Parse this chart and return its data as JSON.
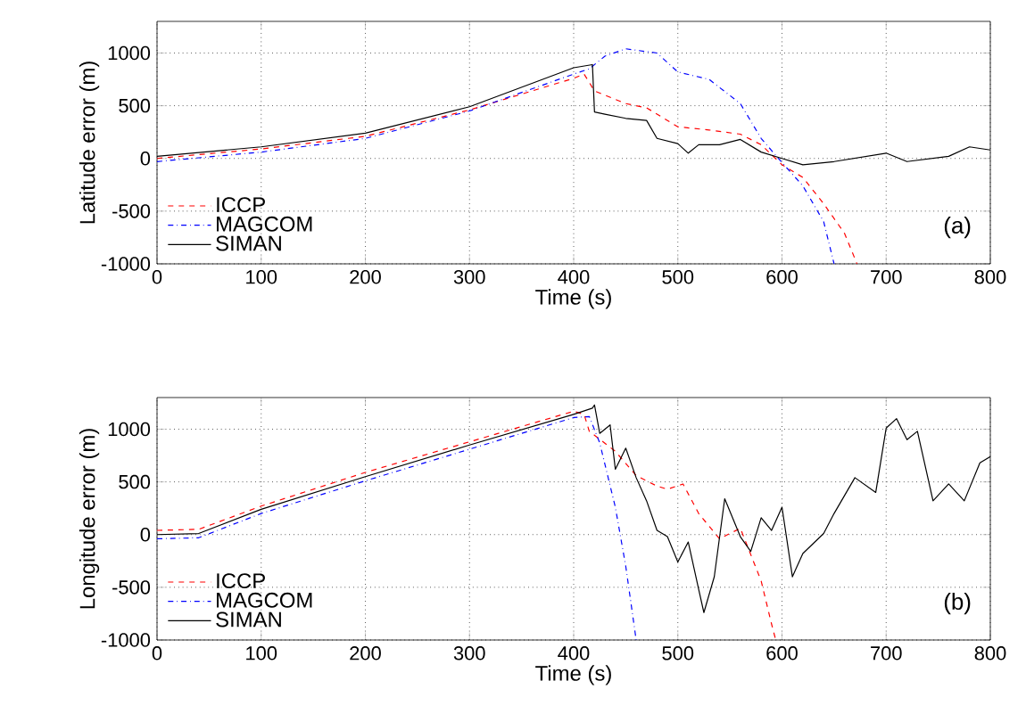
{
  "chart_data": [
    {
      "type": "line",
      "xlabel": "Time (s)",
      "ylabel": "Latitude error (m)",
      "annotations": [
        "(a)"
      ],
      "xlim": [
        0,
        800
      ],
      "ylim": [
        -1000,
        1300
      ],
      "xticks": [
        0,
        100,
        200,
        300,
        400,
        500,
        600,
        700,
        800
      ],
      "yticks": [
        -1000,
        -500,
        0,
        500,
        1000
      ],
      "grid": true,
      "legend": "bottom left",
      "series": [
        {
          "name": "ICCP",
          "color": "#ff0000",
          "line_style": "dashed",
          "x": [
            0,
            100,
            200,
            300,
            400,
            410,
            420,
            450,
            470,
            500,
            530,
            560,
            580,
            600,
            620,
            640,
            660,
            672
          ],
          "values": [
            0,
            90,
            210,
            460,
            760,
            800,
            640,
            520,
            480,
            300,
            270,
            230,
            130,
            -60,
            -180,
            -430,
            -710,
            -1000
          ]
        },
        {
          "name": "MAGCOM",
          "color": "#0000ff",
          "line_style": "dashdot",
          "x": [
            0,
            100,
            200,
            300,
            400,
            415,
            430,
            450,
            480,
            500,
            530,
            560,
            580,
            600,
            620,
            640,
            650
          ],
          "values": [
            -30,
            60,
            190,
            450,
            800,
            850,
            970,
            1040,
            1000,
            820,
            750,
            520,
            190,
            -40,
            -260,
            -600,
            -1000
          ]
        },
        {
          "name": "SIMAN",
          "color": "#000000",
          "line_style": "solid",
          "x": [
            0,
            100,
            200,
            300,
            400,
            418,
            420,
            430,
            450,
            470,
            480,
            500,
            510,
            520,
            540,
            560,
            580,
            600,
            620,
            650,
            700,
            720,
            760,
            780,
            800
          ],
          "values": [
            20,
            110,
            240,
            490,
            860,
            890,
            440,
            420,
            380,
            360,
            190,
            140,
            50,
            130,
            130,
            180,
            60,
            0,
            -60,
            -30,
            50,
            -30,
            20,
            110,
            80
          ]
        }
      ]
    },
    {
      "type": "line",
      "xlabel": "Time (s)",
      "ylabel": "Longitude error (m)",
      "annotations": [
        "(b)"
      ],
      "xlim": [
        0,
        800
      ],
      "ylim": [
        -1000,
        1300
      ],
      "xticks": [
        0,
        100,
        200,
        300,
        400,
        500,
        600,
        700,
        800
      ],
      "yticks": [
        -1000,
        -500,
        0,
        500,
        1000
      ],
      "grid": true,
      "legend": "bottom left",
      "series": [
        {
          "name": "ICCP",
          "color": "#ff0000",
          "line_style": "dashed",
          "x": [
            0,
            40,
            100,
            200,
            300,
            400,
            410,
            415,
            440,
            460,
            480,
            490,
            505,
            520,
            540,
            560,
            580,
            590,
            594
          ],
          "values": [
            40,
            50,
            270,
            590,
            880,
            1170,
            1140,
            980,
            790,
            560,
            460,
            430,
            480,
            200,
            -40,
            60,
            -440,
            -850,
            -1000
          ]
        },
        {
          "name": "MAGCOM",
          "color": "#0000ff",
          "line_style": "dashdot",
          "x": [
            0,
            40,
            100,
            200,
            300,
            400,
            415,
            425,
            440,
            450,
            460
          ],
          "values": [
            -40,
            -30,
            200,
            510,
            810,
            1110,
            1120,
            870,
            260,
            -300,
            -1000
          ]
        },
        {
          "name": "SIMAN",
          "color": "#000000",
          "line_style": "solid",
          "x": [
            0,
            40,
            100,
            200,
            300,
            400,
            418,
            420,
            425,
            435,
            440,
            450,
            460,
            470,
            480,
            490,
            500,
            510,
            520,
            525,
            535,
            545,
            560,
            570,
            580,
            590,
            600,
            610,
            620,
            640,
            650,
            670,
            690,
            700,
            710,
            720,
            730,
            745,
            760,
            775,
            790,
            800
          ],
          "values": [
            0,
            10,
            240,
            550,
            850,
            1140,
            1200,
            1230,
            960,
            1040,
            620,
            820,
            540,
            320,
            40,
            -20,
            -260,
            -70,
            -520,
            -740,
            -400,
            340,
            -20,
            -160,
            160,
            40,
            260,
            -400,
            -180,
            10,
            200,
            540,
            400,
            1010,
            1100,
            900,
            980,
            320,
            480,
            320,
            680,
            740
          ]
        }
      ]
    }
  ]
}
